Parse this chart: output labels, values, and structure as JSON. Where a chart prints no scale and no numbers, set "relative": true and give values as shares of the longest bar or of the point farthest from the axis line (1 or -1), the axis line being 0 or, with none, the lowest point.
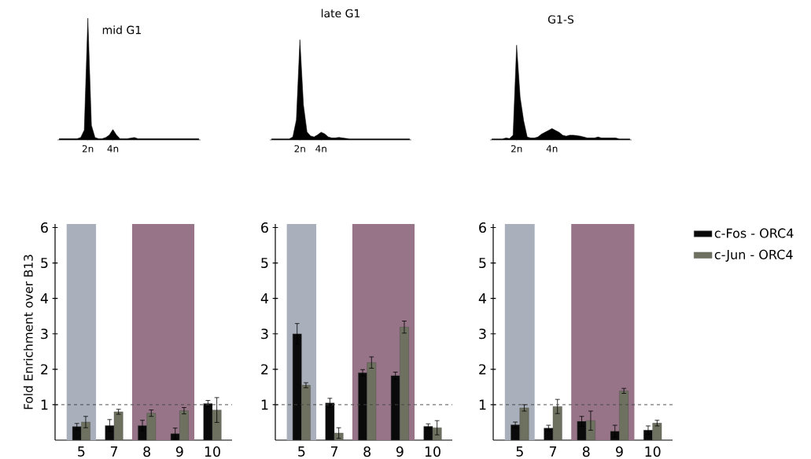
{
  "chart_data": [
    {
      "type": "area",
      "title": "mid G1",
      "relative": true,
      "color": "#000000",
      "categories": [
        null,
        null,
        null,
        null,
        null,
        null,
        null,
        null,
        "2n",
        null,
        null,
        null,
        null,
        null,
        null,
        "4n",
        null,
        null,
        null,
        null,
        null,
        null,
        null,
        null,
        null,
        null,
        null,
        null,
        null,
        null,
        null,
        null,
        null,
        null,
        null,
        null,
        null,
        null,
        null,
        null
      ],
      "values": [
        0.01,
        0.01,
        0.01,
        0.01,
        0.01,
        0.01,
        0.02,
        0.08,
        1,
        0.12,
        0.02,
        0.01,
        0.01,
        0.02,
        0.04,
        0.085,
        0.04,
        0.01,
        0.01,
        0.01,
        0.015,
        0.02,
        0.01,
        0.01,
        0.01,
        0.01,
        0.01,
        0.01,
        0.01,
        0.01,
        0.01,
        0.01,
        0.01,
        0.01,
        0.01,
        0.01,
        0.01,
        0.01,
        0.01,
        0.01
      ]
    },
    {
      "type": "area",
      "title": "late G1",
      "relative": true,
      "color": "#000000",
      "categories": [
        null,
        null,
        null,
        null,
        null,
        null,
        null,
        null,
        "2n",
        null,
        null,
        null,
        null,
        null,
        "4n",
        null,
        null,
        null,
        null,
        null,
        null,
        null,
        null,
        null,
        null,
        null,
        null,
        null,
        null,
        null,
        null,
        null,
        null,
        null,
        null,
        null,
        null,
        null,
        null,
        null
      ],
      "values": [
        0.01,
        0.01,
        0.01,
        0.01,
        0.01,
        0.01,
        0.03,
        0.2,
        1,
        0.35,
        0.08,
        0.04,
        0.03,
        0.05,
        0.077,
        0.06,
        0.03,
        0.02,
        0.02,
        0.025,
        0.02,
        0.015,
        0.01,
        0.01,
        0.01,
        0.01,
        0.01,
        0.01,
        0.01,
        0.01,
        0.01,
        0.01,
        0.01,
        0.01,
        0.01,
        0.01,
        0.01,
        0.01,
        0.01,
        0.01
      ]
    },
    {
      "type": "area",
      "title": "G1-S",
      "relative": true,
      "color": "#000000",
      "categories": [
        null,
        null,
        null,
        null,
        null,
        null,
        null,
        "2n",
        null,
        null,
        null,
        null,
        null,
        null,
        null,
        null,
        null,
        "4n",
        null,
        null,
        null,
        null,
        null,
        null,
        null,
        null,
        null,
        null,
        null,
        null,
        null,
        null,
        null,
        null,
        null,
        null,
        null,
        null,
        null,
        null
      ],
      "values": [
        0.01,
        0.01,
        0.01,
        0.01,
        0.02,
        0.015,
        0.05,
        1,
        0.45,
        0.2,
        0.03,
        0.02,
        0.02,
        0.03,
        0.06,
        0.08,
        0.1,
        0.12,
        0.1,
        0.08,
        0.05,
        0.04,
        0.05,
        0.05,
        0.045,
        0.04,
        0.03,
        0.02,
        0.02,
        0.02,
        0.03,
        0.02,
        0.02,
        0.02,
        0.02,
        0.02,
        0.01,
        0.01,
        0.01,
        0.01
      ]
    },
    {
      "type": "bar",
      "ylabel": "Fold Enrichment over B13",
      "categories": [
        "5",
        "7",
        "8",
        "9",
        "10"
      ],
      "ylim": [
        0,
        6.1
      ],
      "yticks": [
        1,
        2,
        3,
        4,
        5,
        6
      ],
      "series": [
        {
          "color": "#0a0a0a",
          "values": [
            0.38,
            0.41,
            0.41,
            0.18,
            1.03
          ],
          "errors": [
            0.09,
            0.17,
            0.15,
            0.16,
            0.09
          ]
        },
        {
          "color": "#6e7160",
          "values": [
            0.51,
            0.8,
            0.76,
            0.83,
            0.85
          ],
          "errors": [
            0.16,
            0.07,
            0.09,
            0.09,
            0.35
          ]
        }
      ],
      "ref_lines": [
        {
          "axis": "y",
          "value": 1,
          "color": "#444444",
          "line_style": "dashed"
        }
      ],
      "bands": [
        {
          "axis": "x",
          "from": "5",
          "to": "5",
          "color": "#a9b0bb"
        },
        {
          "axis": "x",
          "from": "8",
          "to": "9",
          "color": "#977487"
        }
      ]
    },
    {
      "type": "bar",
      "categories": [
        "5",
        "7",
        "8",
        "9",
        "10"
      ],
      "ylim": [
        0,
        6.1
      ],
      "yticks": [
        1,
        2,
        3,
        4,
        5,
        6
      ],
      "series": [
        {
          "color": "#0a0a0a",
          "values": [
            3.0,
            1.05,
            1.9,
            1.82,
            0.39
          ],
          "errors": [
            0.29,
            0.13,
            0.09,
            0.1,
            0.07
          ]
        },
        {
          "color": "#6e7160",
          "values": [
            1.55,
            0.2,
            2.19,
            3.19,
            0.35
          ],
          "errors": [
            0.07,
            0.15,
            0.16,
            0.17,
            0.2
          ]
        }
      ],
      "ref_lines": [
        {
          "axis": "y",
          "value": 1,
          "color": "#444444",
          "line_style": "dashed"
        }
      ],
      "bands": [
        {
          "axis": "x",
          "from": "5",
          "to": "5",
          "color": "#a9b0bb"
        },
        {
          "axis": "x",
          "from": "8",
          "to": "9",
          "color": "#977487"
        }
      ]
    },
    {
      "type": "bar",
      "categories": [
        "5",
        "7",
        "8",
        "9",
        "10"
      ],
      "ylim": [
        0,
        6.1
      ],
      "yticks": [
        1,
        2,
        3,
        4,
        5,
        6
      ],
      "legend": "right",
      "series": [
        {
          "name": "c-Fos - ORC4",
          "color": "#0a0a0a",
          "values": [
            0.43,
            0.34,
            0.53,
            0.25,
            0.28
          ],
          "errors": [
            0.08,
            0.08,
            0.14,
            0.17,
            0.12
          ]
        },
        {
          "name": "c-Jun - ORC4",
          "color": "#6e7160",
          "values": [
            0.91,
            0.95,
            0.55,
            1.39,
            0.48
          ],
          "errors": [
            0.09,
            0.2,
            0.27,
            0.07,
            0.08
          ]
        }
      ],
      "ref_lines": [
        {
          "axis": "y",
          "value": 1,
          "color": "#444444",
          "line_style": "dashed"
        }
      ],
      "bands": [
        {
          "axis": "x",
          "from": "5",
          "to": "5",
          "color": "#a9b0bb"
        },
        {
          "axis": "x",
          "from": "8",
          "to": "9",
          "color": "#977487"
        }
      ]
    }
  ]
}
